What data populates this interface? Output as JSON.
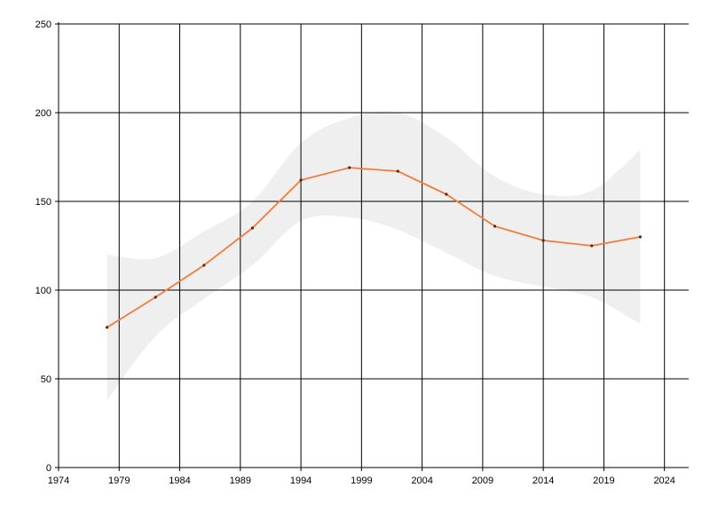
{
  "chart_data": {
    "type": "line",
    "title": "",
    "xlabel": "",
    "ylabel": "",
    "xlim": [
      1974,
      2026
    ],
    "ylim": [
      0,
      250
    ],
    "x_ticks": [
      "1974",
      "1979",
      "1984",
      "1989",
      "1994",
      "1999",
      "2004",
      "2009",
      "2014",
      "2019",
      "2024"
    ],
    "y_ticks": [
      "0",
      "50",
      "100",
      "150",
      "200",
      "250"
    ],
    "grid": true,
    "legend": "none",
    "series": [
      {
        "type": "line",
        "color": "#f47b3e",
        "x": [
          1978,
          1982,
          1986,
          1990,
          1994,
          1998,
          2002,
          2006,
          2010,
          2014,
          2018,
          2022
        ],
        "y": [
          79,
          96,
          114,
          135,
          162,
          169,
          167,
          154,
          136,
          128,
          125,
          130
        ]
      }
    ],
    "confidence_band": {
      "color": "#efefef",
      "x": [
        1978,
        1982,
        1986,
        1990,
        1994,
        1998,
        2002,
        2006,
        2010,
        2014,
        2018,
        2022
      ],
      "upper": [
        120,
        118,
        133,
        150,
        183,
        197,
        200,
        186,
        164,
        154,
        156,
        179
      ],
      "lower": [
        38,
        74,
        95,
        114,
        139,
        141,
        134,
        121,
        108,
        102,
        96,
        81
      ]
    }
  }
}
